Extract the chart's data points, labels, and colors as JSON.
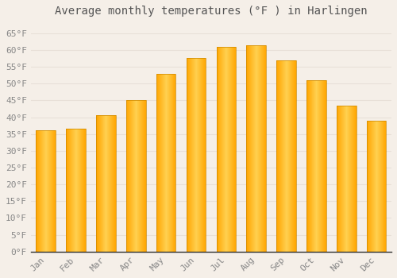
{
  "title": "Average monthly temperatures (°F ) in Harlingen",
  "months": [
    "Jan",
    "Feb",
    "Mar",
    "Apr",
    "May",
    "Jun",
    "Jul",
    "Aug",
    "Sep",
    "Oct",
    "Nov",
    "Dec"
  ],
  "values": [
    36,
    36.5,
    40.5,
    45,
    53,
    57.5,
    61,
    61.5,
    57,
    51,
    43.5,
    39
  ],
  "bar_color_center": "#FFD966",
  "bar_color_edge": "#FFA500",
  "background_color": "#F5EFE8",
  "grid_color": "#E8E0D8",
  "text_color": "#888888",
  "title_color": "#555555",
  "axis_color": "#333333",
  "ylim": [
    0,
    68
  ],
  "yticks": [
    0,
    5,
    10,
    15,
    20,
    25,
    30,
    35,
    40,
    45,
    50,
    55,
    60,
    65
  ],
  "ytick_labels": [
    "0°F",
    "5°F",
    "10°F",
    "15°F",
    "20°F",
    "25°F",
    "30°F",
    "35°F",
    "40°F",
    "45°F",
    "50°F",
    "55°F",
    "60°F",
    "65°F"
  ],
  "title_fontsize": 10,
  "tick_fontsize": 8,
  "font_family": "monospace",
  "bar_width": 0.65
}
